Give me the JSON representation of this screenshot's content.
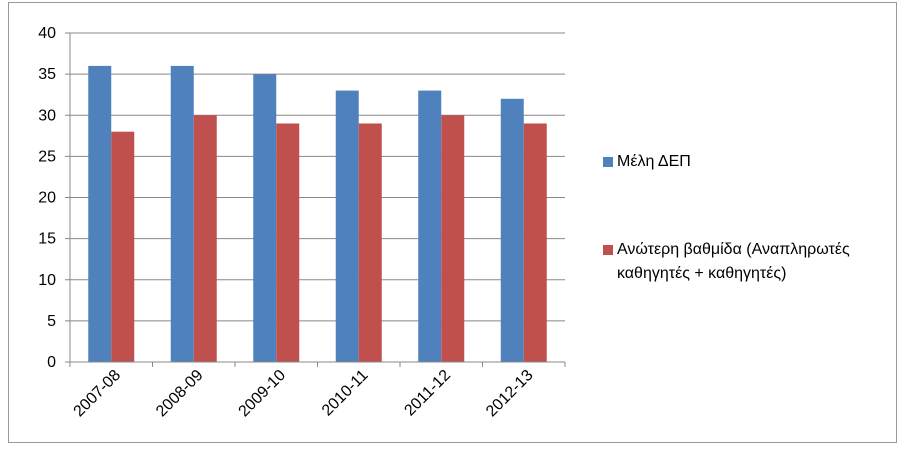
{
  "chart_data": {
    "type": "bar",
    "categories": [
      "2007-08",
      "2008-09",
      "2009-10",
      "2010-11",
      "2011-12",
      "2012-13"
    ],
    "series": [
      {
        "name": "Μέλη ΔΕΠ",
        "color": "#4f81bd",
        "values": [
          36,
          36,
          35,
          33,
          33,
          32
        ]
      },
      {
        "name": "Ανώτερη βαθμίδα (Αναπληρωτές καθηγητές + καθηγητές)",
        "color": "#c0504d",
        "values": [
          28,
          30,
          29,
          29,
          30,
          29
        ]
      }
    ],
    "ylim": [
      0,
      40
    ],
    "yticks": [
      0,
      5,
      10,
      15,
      20,
      25,
      30,
      35,
      40
    ],
    "grid": true,
    "legend": "right"
  }
}
